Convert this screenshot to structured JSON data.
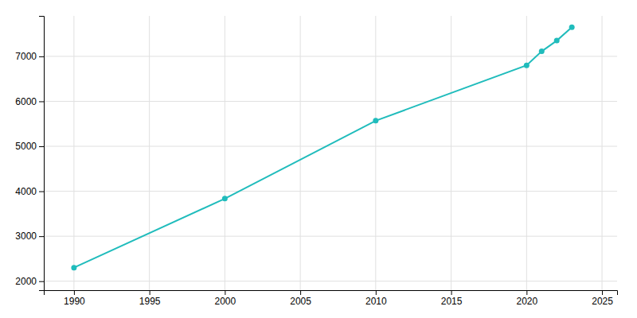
{
  "chart_data": {
    "type": "line",
    "x": [
      1990,
      2000,
      2010,
      2020,
      2021,
      2022,
      2023
    ],
    "values": [
      2301,
      3836,
      5569,
      6800,
      7112,
      7350,
      7650
    ],
    "color": "#20BCBC",
    "marker": "circle",
    "xlim": [
      1988,
      2026
    ],
    "ylim": [
      1800,
      7900
    ],
    "xticks": [
      1990,
      1995,
      2000,
      2005,
      2010,
      2015,
      2020,
      2025
    ],
    "yticks": [
      2000,
      3000,
      4000,
      5000,
      6000,
      7000
    ],
    "grid": true
  }
}
